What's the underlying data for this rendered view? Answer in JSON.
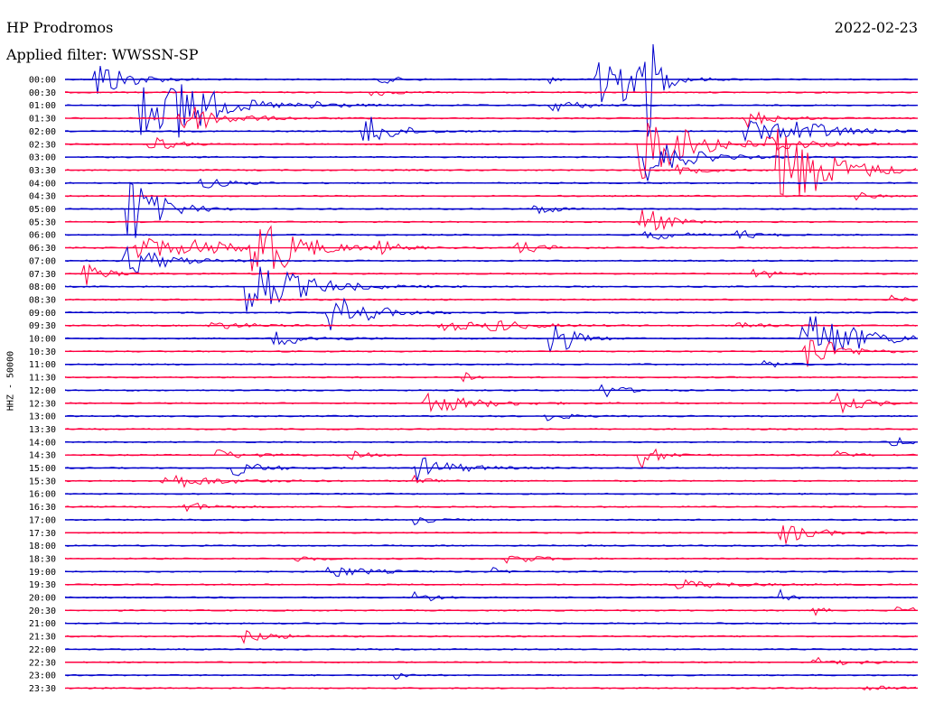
{
  "header": {
    "station": "HP Prodromos",
    "date": "2022-02-23",
    "filter": "Applied filter: WWSSN-SP"
  },
  "side_label": "HHZ - 50000",
  "colors": {
    "blue": "#0000cc",
    "red": "#ff0040"
  },
  "chart_data": {
    "type": "line",
    "title": "HP Prodromos",
    "ylabel": "HHZ - 50000",
    "lines": [
      "00:00",
      "00:30",
      "01:00",
      "01:30",
      "02:00",
      "02:30",
      "03:00",
      "03:30",
      "04:00",
      "04:30",
      "05:00",
      "05:30",
      "06:00",
      "06:30",
      "07:00",
      "07:30",
      "08:00",
      "08:30",
      "09:00",
      "09:30",
      "10:00",
      "10:30",
      "11:00",
      "11:30",
      "12:00",
      "12:30",
      "13:00",
      "13:30",
      "14:00",
      "14:30",
      "15:00",
      "15:30",
      "16:00",
      "16:30",
      "17:00",
      "17:30",
      "18:00",
      "18:30",
      "19:00",
      "19:30",
      "20:00",
      "20:30",
      "21:00",
      "21:30",
      "22:00",
      "22:30",
      "23:00",
      "23:30"
    ],
    "line_colors": [
      "blue",
      "red"
    ],
    "events": [
      {
        "line": 0,
        "pos": 0.036,
        "amp": 28,
        "dur": 0.03
      },
      {
        "line": 0,
        "pos": 0.37,
        "amp": 5,
        "dur": 0.02
      },
      {
        "line": 0,
        "pos": 0.57,
        "amp": 4,
        "dur": 0.01
      },
      {
        "line": 0,
        "pos": 0.625,
        "amp": 72,
        "dur": 0.03
      },
      {
        "line": 0,
        "pos": 0.68,
        "amp": 85,
        "dur": 0.01
      },
      {
        "line": 1,
        "pos": 0.36,
        "amp": 5,
        "dur": 0.02
      },
      {
        "line": 2,
        "pos": 0.09,
        "amp": 38,
        "dur": 0.06
      },
      {
        "line": 2,
        "pos": 0.135,
        "amp": 42,
        "dur": 0.02
      },
      {
        "line": 2,
        "pos": 0.29,
        "amp": 6,
        "dur": 0.02
      },
      {
        "line": 2,
        "pos": 0.57,
        "amp": 8,
        "dur": 0.03
      },
      {
        "line": 3,
        "pos": 0.135,
        "amp": 22,
        "dur": 0.04
      },
      {
        "line": 3,
        "pos": 0.8,
        "amp": 10,
        "dur": 0.03
      },
      {
        "line": 4,
        "pos": 0.35,
        "amp": 22,
        "dur": 0.03
      },
      {
        "line": 4,
        "pos": 0.8,
        "amp": 15,
        "dur": 0.05
      },
      {
        "line": 4,
        "pos": 0.86,
        "amp": 10,
        "dur": 0.04
      },
      {
        "line": 5,
        "pos": 0.1,
        "amp": 12,
        "dur": 0.02
      },
      {
        "line": 5,
        "pos": 0.675,
        "amp": 45,
        "dur": 0.05
      },
      {
        "line": 5,
        "pos": 0.82,
        "amp": 10,
        "dur": 0.04
      },
      {
        "line": 6,
        "pos": 0.68,
        "amp": 28,
        "dur": 0.04
      },
      {
        "line": 7,
        "pos": 0.838,
        "amp": 55,
        "dur": 0.05
      },
      {
        "line": 7,
        "pos": 0.72,
        "amp": 5,
        "dur": 0.03
      },
      {
        "line": 8,
        "pos": 0.16,
        "amp": 7,
        "dur": 0.03
      },
      {
        "line": 9,
        "pos": 0.93,
        "amp": 4,
        "dur": 0.02
      },
      {
        "line": 10,
        "pos": 0.075,
        "amp": 45,
        "dur": 0.03
      },
      {
        "line": 10,
        "pos": 0.55,
        "amp": 8,
        "dur": 0.02
      },
      {
        "line": 11,
        "pos": 0.675,
        "amp": 30,
        "dur": 0.02
      },
      {
        "line": 12,
        "pos": 0.68,
        "amp": 8,
        "dur": 0.03
      },
      {
        "line": 12,
        "pos": 0.79,
        "amp": 6,
        "dur": 0.02
      },
      {
        "line": 13,
        "pos": 0.085,
        "amp": 14,
        "dur": 0.06
      },
      {
        "line": 13,
        "pos": 0.155,
        "amp": 6,
        "dur": 0.04
      },
      {
        "line": 13,
        "pos": 0.22,
        "amp": 50,
        "dur": 0.04
      },
      {
        "line": 13,
        "pos": 0.37,
        "amp": 7,
        "dur": 0.02
      },
      {
        "line": 13,
        "pos": 0.53,
        "amp": 7,
        "dur": 0.03
      },
      {
        "line": 14,
        "pos": 0.07,
        "amp": 20,
        "dur": 0.04
      },
      {
        "line": 15,
        "pos": 0.025,
        "amp": 12,
        "dur": 0.02
      },
      {
        "line": 15,
        "pos": 0.81,
        "amp": 8,
        "dur": 0.02
      },
      {
        "line": 16,
        "pos": 0.215,
        "amp": 40,
        "dur": 0.05
      },
      {
        "line": 17,
        "pos": 0.97,
        "amp": 4,
        "dur": 0.02
      },
      {
        "line": 18,
        "pos": 0.31,
        "amp": 25,
        "dur": 0.04
      },
      {
        "line": 19,
        "pos": 0.17,
        "amp": 5,
        "dur": 0.04
      },
      {
        "line": 19,
        "pos": 0.44,
        "amp": 6,
        "dur": 0.06
      },
      {
        "line": 19,
        "pos": 0.5,
        "amp": 6,
        "dur": 0.03
      },
      {
        "line": 19,
        "pos": 0.785,
        "amp": 6,
        "dur": 0.02
      },
      {
        "line": 20,
        "pos": 0.245,
        "amp": 9,
        "dur": 0.04
      },
      {
        "line": 20,
        "pos": 0.57,
        "amp": 28,
        "dur": 0.02
      },
      {
        "line": 20,
        "pos": 0.865,
        "amp": 40,
        "dur": 0.05
      },
      {
        "line": 21,
        "pos": 0.87,
        "amp": 25,
        "dur": 0.03
      },
      {
        "line": 22,
        "pos": 0.82,
        "amp": 5,
        "dur": 0.02
      },
      {
        "line": 23,
        "pos": 0.47,
        "amp": 8,
        "dur": 0.01
      },
      {
        "line": 24,
        "pos": 0.63,
        "amp": 10,
        "dur": 0.02
      },
      {
        "line": 25,
        "pos": 0.42,
        "amp": 14,
        "dur": 0.05
      },
      {
        "line": 25,
        "pos": 0.9,
        "amp": 14,
        "dur": 0.03
      },
      {
        "line": 26,
        "pos": 0.565,
        "amp": 6,
        "dur": 0.02
      },
      {
        "line": 28,
        "pos": 0.97,
        "amp": 6,
        "dur": 0.02
      },
      {
        "line": 29,
        "pos": 0.18,
        "amp": 6,
        "dur": 0.03
      },
      {
        "line": 29,
        "pos": 0.335,
        "amp": 5,
        "dur": 0.02
      },
      {
        "line": 29,
        "pos": 0.675,
        "amp": 16,
        "dur": 0.02
      },
      {
        "line": 29,
        "pos": 0.9,
        "amp": 5,
        "dur": 0.02
      },
      {
        "line": 30,
        "pos": 0.2,
        "amp": 9,
        "dur": 0.03
      },
      {
        "line": 30,
        "pos": 0.41,
        "amp": 15,
        "dur": 0.04
      },
      {
        "line": 31,
        "pos": 0.115,
        "amp": 10,
        "dur": 0.05
      },
      {
        "line": 31,
        "pos": 0.41,
        "amp": 6,
        "dur": 0.02
      },
      {
        "line": 33,
        "pos": 0.14,
        "amp": 6,
        "dur": 0.03
      },
      {
        "line": 34,
        "pos": 0.41,
        "amp": 5,
        "dur": 0.02
      },
      {
        "line": 35,
        "pos": 0.84,
        "amp": 15,
        "dur": 0.03
      },
      {
        "line": 37,
        "pos": 0.27,
        "amp": 4,
        "dur": 0.02
      },
      {
        "line": 37,
        "pos": 0.52,
        "amp": 6,
        "dur": 0.03
      },
      {
        "line": 38,
        "pos": 0.31,
        "amp": 7,
        "dur": 0.04
      },
      {
        "line": 38,
        "pos": 0.5,
        "amp": 5,
        "dur": 0.01
      },
      {
        "line": 39,
        "pos": 0.715,
        "amp": 6,
        "dur": 0.05
      },
      {
        "line": 40,
        "pos": 0.41,
        "amp": 8,
        "dur": 0.02
      },
      {
        "line": 40,
        "pos": 0.84,
        "amp": 8,
        "dur": 0.01
      },
      {
        "line": 41,
        "pos": 0.88,
        "amp": 5,
        "dur": 0.01
      },
      {
        "line": 41,
        "pos": 0.975,
        "amp": 7,
        "dur": 0.02
      },
      {
        "line": 43,
        "pos": 0.21,
        "amp": 8,
        "dur": 0.03
      },
      {
        "line": 45,
        "pos": 0.88,
        "amp": 5,
        "dur": 0.04
      },
      {
        "line": 46,
        "pos": 0.39,
        "amp": 6,
        "dur": 0.01
      },
      {
        "line": 47,
        "pos": 0.94,
        "amp": 4,
        "dur": 0.03
      }
    ]
  }
}
